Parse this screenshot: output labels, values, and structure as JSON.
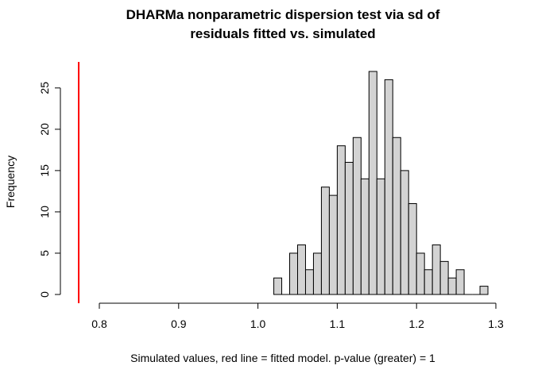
{
  "chart_data": {
    "type": "bar",
    "title_lines": [
      "DHARMa nonparametric dispersion test via sd of",
      "residuals fitted vs. simulated"
    ],
    "xlabel": "Simulated values, red line = fitted model. p-value (greater) = 1",
    "ylabel": "Frequency",
    "xlim": [
      0.8,
      1.3
    ],
    "ylim": [
      0,
      27
    ],
    "x_ticks": [
      0.8,
      0.9,
      1.0,
      1.1,
      1.2,
      1.3
    ],
    "x_tick_labels": [
      "0.8",
      "0.9",
      "1.0",
      "1.1",
      "1.2",
      "1.3"
    ],
    "y_ticks": [
      0,
      5,
      10,
      15,
      20,
      25
    ],
    "y_tick_labels": [
      "0",
      "5",
      "10",
      "15",
      "20",
      "25"
    ],
    "bin_width": 0.01,
    "bins": [
      {
        "x0": 1.02,
        "x1": 1.03,
        "count": 2
      },
      {
        "x0": 1.03,
        "x1": 1.04,
        "count": 0
      },
      {
        "x0": 1.04,
        "x1": 1.05,
        "count": 5
      },
      {
        "x0": 1.05,
        "x1": 1.06,
        "count": 6
      },
      {
        "x0": 1.06,
        "x1": 1.07,
        "count": 3
      },
      {
        "x0": 1.07,
        "x1": 1.08,
        "count": 5
      },
      {
        "x0": 1.08,
        "x1": 1.09,
        "count": 13
      },
      {
        "x0": 1.09,
        "x1": 1.1,
        "count": 12
      },
      {
        "x0": 1.1,
        "x1": 1.11,
        "count": 18
      },
      {
        "x0": 1.11,
        "x1": 1.12,
        "count": 16
      },
      {
        "x0": 1.12,
        "x1": 1.13,
        "count": 19
      },
      {
        "x0": 1.13,
        "x1": 1.14,
        "count": 14
      },
      {
        "x0": 1.14,
        "x1": 1.15,
        "count": 27
      },
      {
        "x0": 1.15,
        "x1": 1.16,
        "count": 14
      },
      {
        "x0": 1.16,
        "x1": 1.17,
        "count": 26
      },
      {
        "x0": 1.17,
        "x1": 1.18,
        "count": 19
      },
      {
        "x0": 1.18,
        "x1": 1.19,
        "count": 15
      },
      {
        "x0": 1.19,
        "x1": 1.2,
        "count": 11
      },
      {
        "x0": 1.2,
        "x1": 1.21,
        "count": 5
      },
      {
        "x0": 1.21,
        "x1": 1.22,
        "count": 3
      },
      {
        "x0": 1.22,
        "x1": 1.23,
        "count": 6
      },
      {
        "x0": 1.23,
        "x1": 1.24,
        "count": 4
      },
      {
        "x0": 1.24,
        "x1": 1.25,
        "count": 2
      },
      {
        "x0": 1.25,
        "x1": 1.26,
        "count": 3
      },
      {
        "x0": 1.26,
        "x1": 1.27,
        "count": 0
      },
      {
        "x0": 1.27,
        "x1": 1.28,
        "count": 0
      },
      {
        "x0": 1.28,
        "x1": 1.29,
        "count": 1
      }
    ],
    "fitted_value": 0.774,
    "bar_fill": "#d3d3d3",
    "bar_stroke": "#000000",
    "fitted_line_color": "#ff0000",
    "grid": false,
    "legend": "none"
  }
}
